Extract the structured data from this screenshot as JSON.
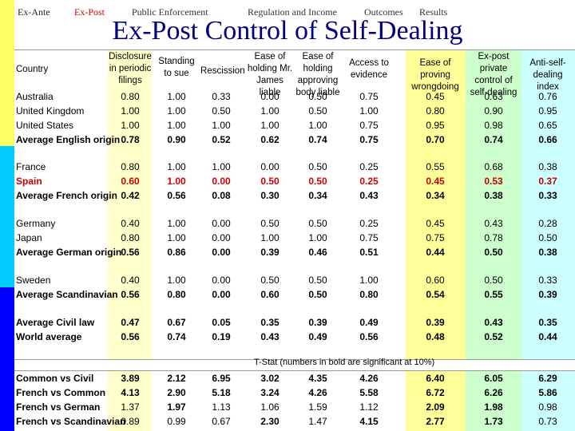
{
  "nav": {
    "items": [
      "Ex-Ante",
      "Ex-Post",
      "Public Enforcement",
      "Regulation and Income",
      "Outcomes",
      "Results"
    ],
    "active": "Ex-Post"
  },
  "title": "Ex-Post Control of Self-Dealing",
  "headers": [
    "Country",
    "Disclosure in periodic filings",
    "Standing to sue",
    "Rescission",
    "Ease of holding Mr. James liable",
    "Ease of holding approving body liable",
    "Access to evidence",
    "Ease of proving wrongdoing",
    "Ex-post private control of self-dealing",
    "Anti-self-dealing index"
  ],
  "groups": [
    [
      {
        "label": "Australia",
        "values": [
          "0.80",
          "1.00",
          "0.33",
          "0.00",
          "0.50",
          "0.75",
          "0.45",
          "0.63",
          "0.76"
        ]
      },
      {
        "label": "United Kingdom",
        "values": [
          "1.00",
          "1.00",
          "0.50",
          "1.00",
          "0.50",
          "1.00",
          "0.80",
          "0.90",
          "0.95"
        ]
      },
      {
        "label": "United States",
        "values": [
          "1.00",
          "1.00",
          "1.00",
          "1.00",
          "1.00",
          "0.75",
          "0.95",
          "0.98",
          "0.65"
        ]
      },
      {
        "label": "Average English origin",
        "values": [
          "0.78",
          "0.90",
          "0.52",
          "0.62",
          "0.74",
          "0.75",
          "0.70",
          "0.74",
          "0.66"
        ],
        "style": "bold"
      }
    ],
    [
      {
        "label": "France",
        "values": [
          "0.80",
          "1.00",
          "1.00",
          "0.00",
          "0.50",
          "0.25",
          "0.55",
          "0.68",
          "0.38"
        ]
      },
      {
        "label": "Spain",
        "values": [
          "0.60",
          "1.00",
          "0.00",
          "0.50",
          "0.50",
          "0.25",
          "0.45",
          "0.53",
          "0.37"
        ],
        "style": "red"
      },
      {
        "label": "Average French origin",
        "values": [
          "0.42",
          "0.56",
          "0.08",
          "0.30",
          "0.34",
          "0.43",
          "0.34",
          "0.38",
          "0.33"
        ],
        "style": "bold"
      }
    ],
    [
      {
        "label": "Germany",
        "values": [
          "0.40",
          "1.00",
          "0.00",
          "0.50",
          "0.50",
          "0.25",
          "0.45",
          "0.43",
          "0.28"
        ]
      },
      {
        "label": "Japan",
        "values": [
          "0.80",
          "1.00",
          "0.00",
          "1.00",
          "1.00",
          "0.75",
          "0.75",
          "0.78",
          "0.50"
        ]
      },
      {
        "label": "Average German origin",
        "values": [
          "0.56",
          "0.86",
          "0.00",
          "0.39",
          "0.46",
          "0.51",
          "0.44",
          "0.50",
          "0.38"
        ],
        "style": "bold"
      }
    ],
    [
      {
        "label": "Sweden",
        "values": [
          "0.40",
          "1.00",
          "0.00",
          "0.50",
          "0.50",
          "1.00",
          "0.60",
          "0.50",
          "0.33"
        ]
      },
      {
        "label": "Average Scandinavian",
        "values": [
          "0.56",
          "0.80",
          "0.00",
          "0.60",
          "0.50",
          "0.80",
          "0.54",
          "0.55",
          "0.39"
        ],
        "style": "bold"
      }
    ],
    [
      {
        "label": "Average Civil law",
        "values": [
          "0.47",
          "0.67",
          "0.05",
          "0.35",
          "0.39",
          "0.49",
          "0.39",
          "0.43",
          "0.35"
        ],
        "style": "bold"
      },
      {
        "label": "World average",
        "values": [
          "0.56",
          "0.74",
          "0.19",
          "0.43",
          "0.49",
          "0.56",
          "0.48",
          "0.52",
          "0.44"
        ],
        "style": "bold"
      }
    ]
  ],
  "tstat_title": "T-Stat (numbers in bold are significant at 10%)",
  "tstat_rows": [
    {
      "label": "Common vs Civil",
      "values": [
        "3.89",
        "2.12",
        "6.95",
        "3.02",
        "4.35",
        "4.26",
        "6.40",
        "6.05",
        "6.29"
      ],
      "bold": [
        true,
        true,
        true,
        true,
        true,
        true,
        true,
        true,
        true
      ]
    },
    {
      "label": "French vs Common",
      "values": [
        "4.13",
        "2.90",
        "5.18",
        "3.24",
        "4.26",
        "5.58",
        "6.72",
        "6.26",
        "5.86"
      ],
      "bold": [
        true,
        true,
        true,
        true,
        true,
        true,
        true,
        true,
        true
      ]
    },
    {
      "label": "French vs German",
      "values": [
        "1.37",
        "1.97",
        "1.13",
        "1.06",
        "1.59",
        "1.12",
        "2.09",
        "1.98",
        "0.98"
      ],
      "bold": [
        false,
        true,
        false,
        false,
        false,
        false,
        true,
        true,
        false
      ]
    },
    {
      "label": "French vs Scandinavian",
      "values": [
        "0.89",
        "0.99",
        "0.67",
        "2.30",
        "1.47",
        "4.15",
        "2.77",
        "1.73",
        "0.73"
      ],
      "bold": [
        false,
        false,
        false,
        true,
        false,
        true,
        true,
        true,
        false
      ]
    }
  ]
}
